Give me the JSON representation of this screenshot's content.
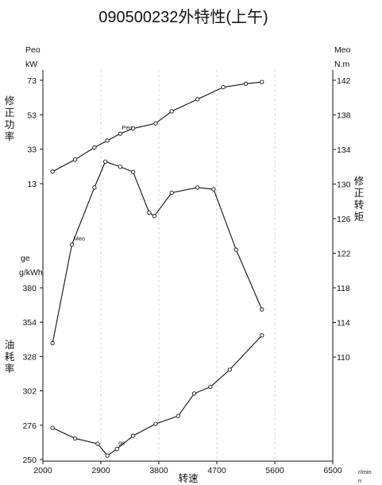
{
  "chart_data": {
    "type": "line",
    "title": "090500232外特性(上午)",
    "xlabel": "转速",
    "x_unit": [
      "r/min",
      "n"
    ],
    "xlim": [
      2000,
      6500
    ],
    "x_ticks": [
      "2000",
      "2900",
      "3800",
      "4700",
      "5600",
      "6500"
    ],
    "grid": true,
    "panels": [
      {
        "axis_side": "left",
        "ylabel": "修正功率",
        "unit_symbol": "Peo",
        "unit": "kW",
        "ticks": [
          "13",
          "33",
          "53",
          "73"
        ],
        "ylim": [
          13,
          73
        ]
      },
      {
        "axis_side": "right",
        "ylabel": "修正转矩",
        "unit_symbol": "Meo",
        "unit": "N.m",
        "ticks": [
          "110",
          "114",
          "118",
          "122",
          "126",
          "130",
          "134",
          "138",
          "142"
        ],
        "ylim": [
          110,
          142
        ]
      },
      {
        "axis_side": "left",
        "ylabel": "油耗率",
        "unit_symbol": "ge",
        "unit": "g/kWh",
        "ticks": [
          "250",
          "276",
          "302",
          "328",
          "354",
          "380"
        ],
        "ylim": [
          250,
          380
        ]
      }
    ],
    "series": [
      {
        "name": "Peo",
        "axis": "Peo",
        "x": [
          2150,
          2500,
          2800,
          3000,
          3200,
          3400,
          3750,
          4000,
          4400,
          4800,
          5150,
          5400
        ],
        "y": [
          20,
          27,
          34,
          38,
          42,
          45,
          48,
          55,
          62,
          69,
          71,
          72
        ]
      },
      {
        "name": "Meo",
        "axis": "Meo",
        "x": [
          2150,
          2450,
          2800,
          2970,
          3200,
          3400,
          3650,
          3730,
          4000,
          4400,
          4650,
          5000,
          5400
        ],
        "y": [
          111.6,
          123.0,
          129.6,
          132.6,
          132.0,
          131.4,
          126.7,
          126.3,
          129.0,
          129.6,
          129.4,
          122.4,
          115.5
        ]
      },
      {
        "name": "ge",
        "axis": "ge",
        "x": [
          2150,
          2500,
          2850,
          3000,
          3150,
          3400,
          3750,
          4100,
          4350,
          4600,
          4900,
          5400
        ],
        "y": [
          274,
          266,
          262,
          253,
          258,
          268,
          277,
          283,
          300,
          305,
          318,
          344
        ]
      }
    ]
  }
}
